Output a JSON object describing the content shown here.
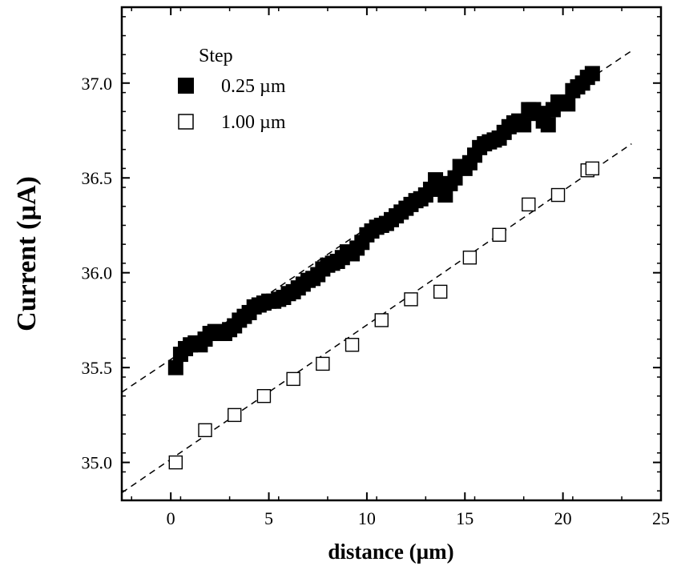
{
  "chart_data": {
    "type": "scatter",
    "xlabel": "distance (µm)",
    "ylabel": "Current (µA)",
    "xlim": [
      -2.5,
      25
    ],
    "ylim": [
      34.8,
      37.4
    ],
    "x_ticks": [
      0,
      5,
      10,
      15,
      20,
      25
    ],
    "y_ticks": [
      35.0,
      35.5,
      36.0,
      36.5,
      37.0
    ],
    "x_tick_labels": [
      "0",
      "5",
      "10",
      "15",
      "20",
      "25"
    ],
    "y_tick_labels": [
      "35.0",
      "35.5",
      "36.0",
      "36.5",
      "37.0"
    ],
    "grid": false,
    "legend": {
      "title": "Step",
      "position": "top-left"
    },
    "series": [
      {
        "name": "0.25 µm",
        "marker": "filled-square",
        "color": "#000000",
        "x": [
          0.25,
          0.5,
          0.75,
          1.0,
          1.25,
          1.5,
          1.75,
          2.0,
          2.25,
          2.5,
          2.75,
          3.0,
          3.25,
          3.5,
          3.75,
          4.0,
          4.25,
          4.5,
          4.75,
          5.0,
          5.25,
          5.5,
          5.75,
          6.0,
          6.25,
          6.5,
          6.75,
          7.0,
          7.25,
          7.5,
          7.75,
          8.0,
          8.25,
          8.5,
          8.75,
          9.0,
          9.25,
          9.5,
          9.75,
          10.0,
          10.25,
          10.5,
          10.75,
          11.0,
          11.25,
          11.5,
          11.75,
          12.0,
          12.25,
          12.5,
          12.75,
          13.0,
          13.25,
          13.5,
          13.75,
          14.0,
          14.25,
          14.5,
          14.75,
          15.0,
          15.25,
          15.5,
          15.75,
          16.0,
          16.25,
          16.5,
          16.75,
          17.0,
          17.25,
          17.5,
          17.75,
          18.0,
          18.25,
          18.5,
          18.75,
          19.0,
          19.25,
          19.5,
          19.75,
          20.0,
          20.25,
          20.5,
          20.75,
          21.0,
          21.25,
          21.5
        ],
        "y": [
          35.5,
          35.57,
          35.6,
          35.62,
          35.63,
          35.62,
          35.65,
          35.68,
          35.69,
          35.68,
          35.68,
          35.7,
          35.72,
          35.75,
          35.77,
          35.79,
          35.82,
          35.83,
          35.84,
          35.85,
          35.85,
          35.86,
          35.87,
          35.89,
          35.9,
          35.92,
          35.94,
          35.96,
          35.97,
          35.99,
          36.02,
          36.04,
          36.05,
          36.06,
          36.08,
          36.11,
          36.1,
          36.13,
          36.16,
          36.2,
          36.22,
          36.24,
          36.25,
          36.26,
          36.28,
          36.3,
          36.32,
          36.34,
          36.36,
          36.38,
          36.39,
          36.41,
          36.44,
          36.49,
          36.45,
          36.41,
          36.47,
          36.5,
          36.56,
          36.55,
          36.58,
          36.62,
          36.66,
          36.68,
          36.69,
          36.7,
          36.71,
          36.74,
          36.77,
          36.79,
          36.8,
          36.78,
          36.86,
          36.86,
          36.84,
          36.8,
          36.78,
          36.86,
          36.9,
          36.9,
          36.89,
          36.96,
          36.98,
          37.0,
          37.03,
          37.05
        ]
      },
      {
        "name": "1.00 µm",
        "marker": "open-square",
        "color": "#000000",
        "x": [
          0.25,
          1.75,
          3.25,
          4.75,
          6.25,
          7.75,
          9.25,
          10.75,
          12.25,
          13.75,
          15.25,
          16.75,
          18.25,
          19.75,
          21.25,
          21.5
        ],
        "y": [
          35.0,
          35.17,
          35.25,
          35.35,
          35.44,
          35.52,
          35.62,
          35.75,
          35.86,
          35.9,
          36.08,
          36.2,
          36.36,
          36.41,
          36.54,
          36.55
        ]
      }
    ],
    "fit_lines": [
      {
        "series": "0.25 µm",
        "style": "dashed",
        "x": [
          -2.5,
          23.5
        ],
        "y": [
          35.37,
          37.17
        ]
      },
      {
        "series": "1.00 µm",
        "style": "dashed",
        "x": [
          -2.5,
          23.5
        ],
        "y": [
          34.84,
          36.68
        ]
      }
    ]
  }
}
